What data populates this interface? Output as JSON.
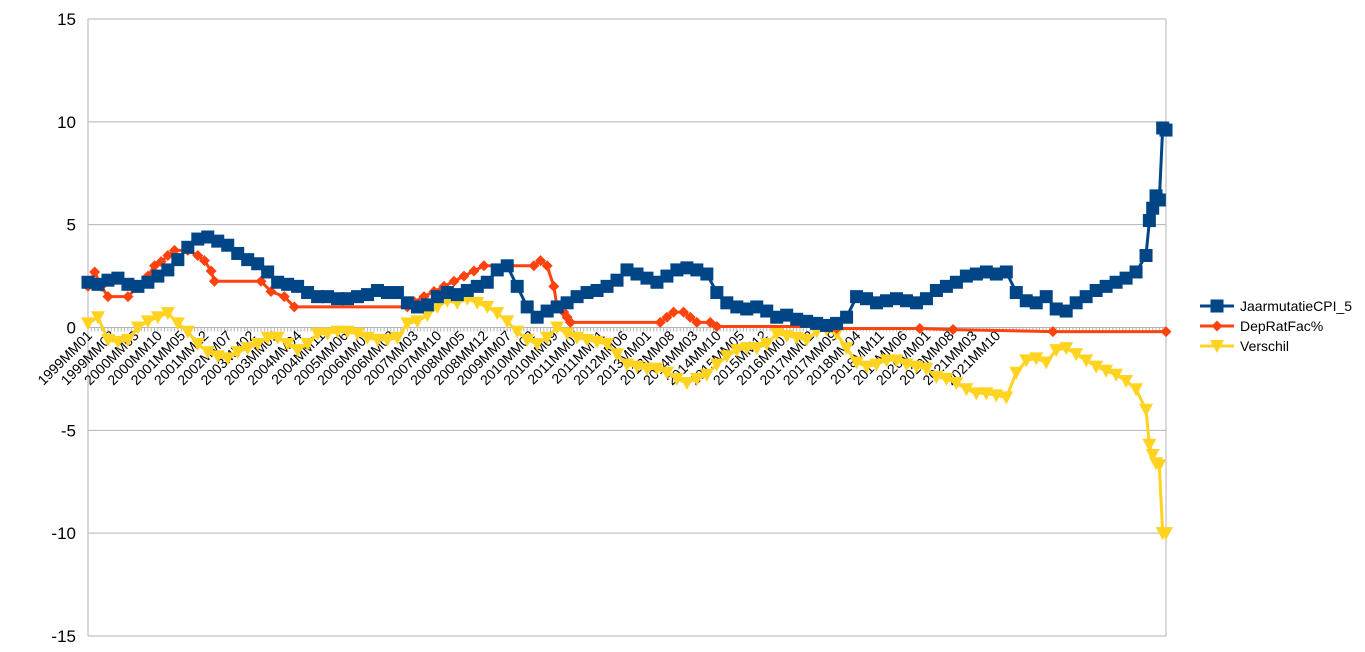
{
  "chart_data": {
    "type": "line",
    "title": "",
    "xlabel": "",
    "ylabel": "",
    "ylim": [
      -15,
      15
    ],
    "yticks": [
      15,
      10,
      5,
      0,
      -5,
      -10,
      -15
    ],
    "grid": true,
    "legend_position": "right",
    "x_tick_labels": [
      "1999MM01",
      "1999MM08",
      "2000MM03",
      "2000MM10",
      "2001MM05",
      "2001MM12",
      "2002MM07",
      "2003MM02",
      "2003MM09",
      "2004MM04",
      "2004MM11",
      "2005MM06",
      "2006MM01",
      "2006MM08",
      "2007MM03",
      "2007MM10",
      "2008MM05",
      "2008MM12",
      "2009MM07",
      "2010MM02",
      "2010MM09",
      "2011MM04",
      "2011MM11",
      "2012MM06",
      "2013MM01",
      "2013MM08",
      "2014MM03",
      "2014MM10",
      "2015MM05",
      "2015MM12",
      "2016MM07",
      "2017MM02",
      "2017MM09",
      "2018MM04",
      "2018MM11",
      "2019MM06",
      "2020MM01",
      "2020MM08",
      "2021MM03",
      "2021MM10"
    ],
    "series": [
      {
        "name": "JaarmutatieCPI_5",
        "color": "#004586",
        "marker": "square",
        "points": [
          [
            0,
            2.2
          ],
          [
            3,
            2.1
          ],
          [
            6,
            2.3
          ],
          [
            9,
            2.4
          ],
          [
            12,
            2.1
          ],
          [
            15,
            2.0
          ],
          [
            18,
            2.2
          ],
          [
            21,
            2.5
          ],
          [
            24,
            2.8
          ],
          [
            27,
            3.3
          ],
          [
            30,
            3.9
          ],
          [
            33,
            4.3
          ],
          [
            36,
            4.4
          ],
          [
            39,
            4.2
          ],
          [
            42,
            4.0
          ],
          [
            45,
            3.6
          ],
          [
            48,
            3.3
          ],
          [
            51,
            3.1
          ],
          [
            54,
            2.7
          ],
          [
            57,
            2.2
          ],
          [
            60,
            2.1
          ],
          [
            63,
            2.0
          ],
          [
            66,
            1.7
          ],
          [
            69,
            1.5
          ],
          [
            72,
            1.5
          ],
          [
            75,
            1.4
          ],
          [
            78,
            1.4
          ],
          [
            81,
            1.5
          ],
          [
            84,
            1.6
          ],
          [
            87,
            1.8
          ],
          [
            90,
            1.7
          ],
          [
            93,
            1.7
          ],
          [
            96,
            1.2
          ],
          [
            99,
            1.0
          ],
          [
            102,
            1.1
          ],
          [
            105,
            1.5
          ],
          [
            108,
            1.7
          ],
          [
            111,
            1.6
          ],
          [
            114,
            1.8
          ],
          [
            117,
            2.0
          ],
          [
            120,
            2.2
          ],
          [
            123,
            2.8
          ],
          [
            126,
            3.0
          ],
          [
            129,
            2.0
          ],
          [
            132,
            1.0
          ],
          [
            135,
            0.5
          ],
          [
            138,
            0.8
          ],
          [
            141,
            1.0
          ],
          [
            144,
            1.2
          ],
          [
            147,
            1.5
          ],
          [
            150,
            1.7
          ],
          [
            153,
            1.8
          ],
          [
            156,
            2.0
          ],
          [
            159,
            2.3
          ],
          [
            162,
            2.8
          ],
          [
            165,
            2.6
          ],
          [
            168,
            2.4
          ],
          [
            171,
            2.2
          ],
          [
            174,
            2.5
          ],
          [
            177,
            2.8
          ],
          [
            180,
            2.9
          ],
          [
            183,
            2.8
          ],
          [
            186,
            2.6
          ],
          [
            189,
            1.7
          ],
          [
            192,
            1.2
          ],
          [
            195,
            1.0
          ],
          [
            198,
            0.9
          ],
          [
            201,
            1.0
          ],
          [
            204,
            0.8
          ],
          [
            207,
            0.5
          ],
          [
            210,
            0.6
          ],
          [
            213,
            0.4
          ],
          [
            216,
            0.3
          ],
          [
            219,
            0.2
          ],
          [
            222,
            0.1
          ],
          [
            225,
            0.2
          ],
          [
            228,
            0.5
          ],
          [
            231,
            1.5
          ],
          [
            234,
            1.4
          ],
          [
            237,
            1.2
          ],
          [
            240,
            1.3
          ],
          [
            243,
            1.4
          ],
          [
            246,
            1.3
          ],
          [
            249,
            1.2
          ],
          [
            252,
            1.4
          ],
          [
            255,
            1.8
          ],
          [
            258,
            2.0
          ],
          [
            261,
            2.2
          ],
          [
            264,
            2.5
          ],
          [
            267,
            2.6
          ],
          [
            270,
            2.7
          ],
          [
            273,
            2.6
          ],
          [
            276,
            2.7
          ],
          [
            279,
            1.7
          ],
          [
            282,
            1.3
          ],
          [
            285,
            1.2
          ],
          [
            288,
            1.5
          ],
          [
            291,
            0.9
          ],
          [
            294,
            0.8
          ],
          [
            297,
            1.2
          ],
          [
            300,
            1.5
          ],
          [
            303,
            1.8
          ],
          [
            306,
            2.0
          ],
          [
            309,
            2.2
          ],
          [
            312,
            2.4
          ],
          [
            315,
            2.7
          ],
          [
            318,
            3.5
          ],
          [
            319,
            5.2
          ],
          [
            320,
            5.8
          ],
          [
            321,
            6.4
          ],
          [
            322,
            6.2
          ],
          [
            323,
            9.7
          ],
          [
            324,
            9.6
          ]
        ]
      },
      {
        "name": "DepRatFac%",
        "color": "#ff420e",
        "marker": "diamond",
        "points": [
          [
            0,
            2.0
          ],
          [
            2,
            2.7
          ],
          [
            4,
            2.0
          ],
          [
            6,
            1.5
          ],
          [
            12,
            1.5
          ],
          [
            15,
            2.0
          ],
          [
            18,
            2.5
          ],
          [
            20,
            3.0
          ],
          [
            22,
            3.2
          ],
          [
            24,
            3.5
          ],
          [
            26,
            3.75
          ],
          [
            30,
            3.75
          ],
          [
            33,
            3.5
          ],
          [
            35,
            3.25
          ],
          [
            37,
            2.75
          ],
          [
            38,
            2.25
          ],
          [
            52,
            2.25
          ],
          [
            55,
            1.75
          ],
          [
            59,
            1.5
          ],
          [
            62,
            1.0
          ],
          [
            96,
            1.0
          ],
          [
            98,
            1.25
          ],
          [
            101,
            1.5
          ],
          [
            104,
            1.75
          ],
          [
            107,
            2.0
          ],
          [
            110,
            2.25
          ],
          [
            113,
            2.5
          ],
          [
            116,
            2.75
          ],
          [
            119,
            3.0
          ],
          [
            134,
            3.0
          ],
          [
            136,
            3.25
          ],
          [
            138,
            3.0
          ],
          [
            140,
            2.0
          ],
          [
            141,
            1.0
          ],
          [
            143,
            0.75
          ],
          [
            144,
            0.5
          ],
          [
            145,
            0.25
          ],
          [
            172,
            0.25
          ],
          [
            174,
            0.5
          ],
          [
            176,
            0.75
          ],
          [
            179,
            0.75
          ],
          [
            181,
            0.5
          ],
          [
            183,
            0.25
          ],
          [
            187,
            0.25
          ],
          [
            189,
            0.05
          ],
          [
            223,
            0.05
          ],
          [
            225,
            -0.05
          ],
          [
            250,
            -0.05
          ],
          [
            260,
            -0.1
          ],
          [
            290,
            -0.2
          ],
          [
            324,
            -0.2
          ]
        ]
      },
      {
        "name": "Verschil",
        "color": "#ffd320",
        "marker": "triangle-down",
        "points": [
          [
            0,
            0.2
          ],
          [
            3,
            0.5
          ],
          [
            6,
            -0.6
          ],
          [
            9,
            -0.7
          ],
          [
            12,
            -0.6
          ],
          [
            15,
            0.0
          ],
          [
            18,
            0.3
          ],
          [
            21,
            0.5
          ],
          [
            24,
            0.7
          ],
          [
            27,
            0.2
          ],
          [
            30,
            -0.2
          ],
          [
            33,
            -0.8
          ],
          [
            36,
            -1.2
          ],
          [
            39,
            -1.4
          ],
          [
            42,
            -1.5
          ],
          [
            45,
            -1.2
          ],
          [
            48,
            -1.0
          ],
          [
            51,
            -0.8
          ],
          [
            54,
            -0.5
          ],
          [
            57,
            -0.5
          ],
          [
            60,
            -0.8
          ],
          [
            63,
            -1.1
          ],
          [
            66,
            -0.8
          ],
          [
            69,
            -0.3
          ],
          [
            72,
            -0.3
          ],
          [
            75,
            -0.2
          ],
          [
            78,
            -0.2
          ],
          [
            81,
            -0.3
          ],
          [
            84,
            -0.5
          ],
          [
            87,
            -0.6
          ],
          [
            90,
            -0.6
          ],
          [
            93,
            -0.5
          ],
          [
            96,
            0.2
          ],
          [
            99,
            0.3
          ],
          [
            102,
            0.6
          ],
          [
            105,
            1.0
          ],
          [
            108,
            1.3
          ],
          [
            111,
            1.2
          ],
          [
            114,
            1.4
          ],
          [
            117,
            1.2
          ],
          [
            120,
            1.0
          ],
          [
            123,
            0.7
          ],
          [
            126,
            0.3
          ],
          [
            129,
            -0.2
          ],
          [
            132,
            -0.6
          ],
          [
            135,
            -0.8
          ],
          [
            138,
            -0.5
          ],
          [
            141,
            0.0
          ],
          [
            144,
            -0.3
          ],
          [
            147,
            -0.5
          ],
          [
            150,
            -0.6
          ],
          [
            153,
            -0.7
          ],
          [
            156,
            -0.8
          ],
          [
            159,
            -1.3
          ],
          [
            162,
            -1.8
          ],
          [
            165,
            -1.9
          ],
          [
            168,
            -2.0
          ],
          [
            171,
            -2.0
          ],
          [
            174,
            -2.2
          ],
          [
            177,
            -2.5
          ],
          [
            180,
            -2.7
          ],
          [
            183,
            -2.5
          ],
          [
            186,
            -2.3
          ],
          [
            189,
            -1.8
          ],
          [
            192,
            -1.4
          ],
          [
            195,
            -1.1
          ],
          [
            198,
            -1.0
          ],
          [
            201,
            -1.0
          ],
          [
            204,
            -0.8
          ],
          [
            207,
            -0.3
          ],
          [
            210,
            -0.4
          ],
          [
            213,
            -0.5
          ],
          [
            216,
            -0.6
          ],
          [
            219,
            -0.2
          ],
          [
            222,
            -0.1
          ],
          [
            225,
            -0.3
          ],
          [
            228,
            -1.0
          ],
          [
            231,
            -1.7
          ],
          [
            234,
            -1.9
          ],
          [
            237,
            -1.8
          ],
          [
            240,
            -1.6
          ],
          [
            243,
            -1.6
          ],
          [
            246,
            -1.8
          ],
          [
            249,
            -1.9
          ],
          [
            252,
            -2.0
          ],
          [
            255,
            -2.4
          ],
          [
            258,
            -2.5
          ],
          [
            261,
            -2.7
          ],
          [
            264,
            -3.0
          ],
          [
            267,
            -3.2
          ],
          [
            270,
            -3.2
          ],
          [
            273,
            -3.3
          ],
          [
            276,
            -3.4
          ],
          [
            279,
            -2.2
          ],
          [
            282,
            -1.6
          ],
          [
            285,
            -1.5
          ],
          [
            288,
            -1.7
          ],
          [
            291,
            -1.1
          ],
          [
            294,
            -1.0
          ],
          [
            297,
            -1.3
          ],
          [
            300,
            -1.6
          ],
          [
            303,
            -1.9
          ],
          [
            306,
            -2.1
          ],
          [
            309,
            -2.3
          ],
          [
            312,
            -2.6
          ],
          [
            315,
            -3.0
          ],
          [
            318,
            -4.0
          ],
          [
            319,
            -5.7
          ],
          [
            320,
            -6.2
          ],
          [
            321,
            -6.6
          ],
          [
            322,
            -6.7
          ],
          [
            323,
            -10.0
          ],
          [
            324,
            -10.0
          ]
        ]
      }
    ]
  }
}
